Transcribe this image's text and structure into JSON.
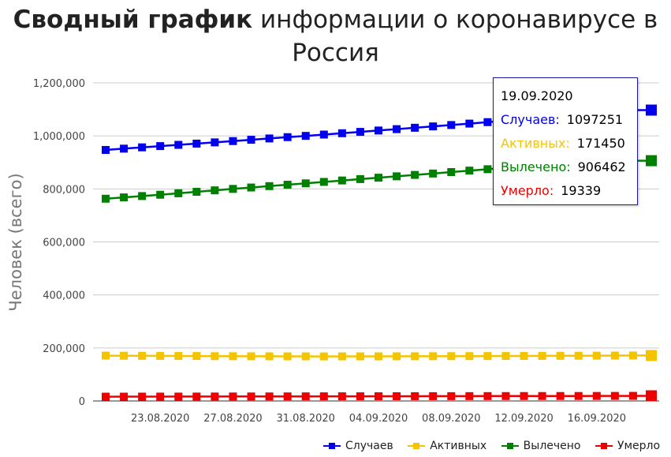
{
  "title_bold": "Сводный график",
  "title_rest": " информации о коронавирусе в Россия",
  "chart_data": {
    "type": "line",
    "ylabel": "Человек (всего)",
    "ylim": [
      0,
      1200000
    ],
    "yticks": [
      "0",
      "200,000",
      "400,000",
      "600,000",
      "800,000",
      "1,000,000",
      "1,200,000"
    ],
    "xticks": [
      "23.08.2020",
      "27.08.2020",
      "31.08.2020",
      "04.09.2020",
      "08.09.2020",
      "12.09.2020",
      "16.09.2020"
    ],
    "x": [
      "20.08.2020",
      "21.08.2020",
      "22.08.2020",
      "23.08.2020",
      "24.08.2020",
      "25.08.2020",
      "26.08.2020",
      "27.08.2020",
      "28.08.2020",
      "29.08.2020",
      "30.08.2020",
      "31.08.2020",
      "01.09.2020",
      "02.09.2020",
      "03.09.2020",
      "04.09.2020",
      "05.09.2020",
      "06.09.2020",
      "07.09.2020",
      "08.09.2020",
      "09.09.2020",
      "10.09.2020",
      "11.09.2020",
      "12.09.2020",
      "13.09.2020",
      "14.09.2020",
      "15.09.2020",
      "16.09.2020",
      "17.09.2020",
      "18.09.2020",
      "19.09.2020"
    ],
    "grid": true,
    "legend_position": "bottom-right",
    "series": [
      {
        "name": "Случаев",
        "color": "#0000ee",
        "values": [
          946976,
          951897,
          956749,
          961493,
          966189,
          970865,
          975576,
          980405,
          985346,
          990326,
          995319,
          1000048,
          1005000,
          1009995,
          1015105,
          1020310,
          1025505,
          1030690,
          1035789,
          1041007,
          1046370,
          1051874,
          1057362,
          1062811,
          1068320,
          1073849,
          1079519,
          1085281,
          1091186,
          1097251,
          1097251
        ]
      },
      {
        "name": "Активных",
        "color": "#f5c400",
        "values": [
          171000,
          170500,
          170200,
          170000,
          169800,
          169500,
          169000,
          168700,
          168500,
          168400,
          168300,
          168200,
          168000,
          168100,
          168200,
          168300,
          168400,
          168600,
          168800,
          169000,
          169200,
          169400,
          169600,
          169800,
          170000,
          170200,
          170500,
          170800,
          171100,
          171450,
          171450
        ]
      },
      {
        "name": "Вылечено",
        "color": "#008000",
        "values": [
          763000,
          768000,
          773000,
          778000,
          783500,
          789000,
          794500,
          800000,
          805300,
          810500,
          815800,
          821000,
          826400,
          831800,
          837000,
          842300,
          847500,
          852800,
          858000,
          863500,
          869000,
          874300,
          879500,
          885000,
          890400,
          895800,
          901000,
          906462,
          906462,
          906462,
          906462
        ]
      },
      {
        "name": "Умерло",
        "color": "#ee0000",
        "values": [
          16189,
          16310,
          16424,
          16524,
          16568,
          16683,
          16804,
          16914,
          17025,
          17128,
          17250,
          17365,
          17479,
          17528,
          17649,
          17758,
          17871,
          17993,
          18080,
          18135,
          18263,
          18365,
          18484,
          18578,
          18635,
          18707,
          18785,
          18917,
          19061,
          19195,
          19339
        ]
      }
    ],
    "annotations": []
  },
  "tooltip": {
    "date": "19.09.2020",
    "rows": [
      {
        "label": "Случаев:",
        "value": "1097251",
        "color": "#0000ee"
      },
      {
        "label": "Активных:",
        "value": "171450",
        "color": "#f5c400"
      },
      {
        "label": "Вылечено:",
        "value": "906462",
        "color": "#008000"
      },
      {
        "label": "Умерло:",
        "value": "19339",
        "color": "#ee0000"
      }
    ]
  }
}
